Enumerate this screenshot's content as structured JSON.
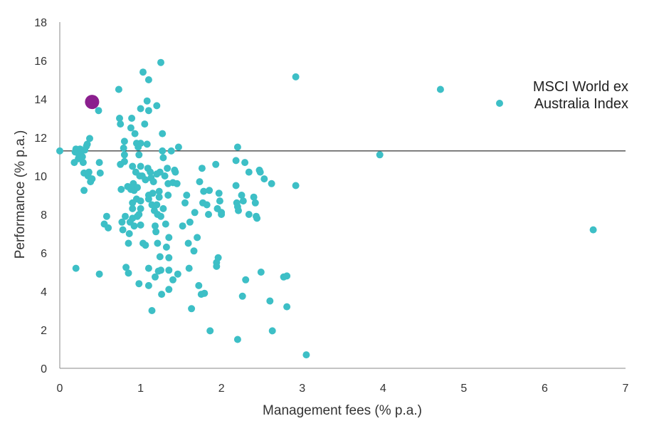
{
  "chart_data": {
    "type": "scatter",
    "title": "",
    "xlabel": "Management fees (% p.a.)",
    "ylabel": "Performance (% p.a.)",
    "xlim": [
      0,
      7
    ],
    "ylim": [
      0,
      18
    ],
    "x_ticks": [
      "0",
      "1",
      "2",
      "3",
      "4",
      "5",
      "6",
      "7"
    ],
    "y_ticks": [
      "0",
      "2",
      "4",
      "6",
      "8",
      "10",
      "12",
      "14",
      "16",
      "18"
    ],
    "grid": false,
    "reference_line": {
      "y": 11.3
    },
    "legend": {
      "position": "right",
      "entries": [
        "MSCI World ex",
        "Australia Index"
      ]
    },
    "colors": {
      "funds": "#3dbfc6",
      "highlight": "#8b1f8e",
      "reference_line": "#000000",
      "axis": "#888888"
    },
    "highlight": {
      "x": 0.4,
      "y": 13.85
    },
    "series": [
      {
        "points": [
          [
            0.0,
            11.3
          ],
          [
            0.18,
            10.7
          ],
          [
            0.19,
            11.25
          ],
          [
            0.2,
            11.4
          ],
          [
            0.22,
            11.2
          ],
          [
            0.23,
            10.9
          ],
          [
            0.25,
            11.4
          ],
          [
            0.26,
            11.1
          ],
          [
            0.28,
            11.0
          ],
          [
            0.29,
            10.7
          ],
          [
            0.3,
            9.25
          ],
          [
            0.3,
            10.15
          ],
          [
            0.31,
            11.35
          ],
          [
            0.33,
            11.55
          ],
          [
            0.34,
            11.65
          ],
          [
            0.35,
            10.0
          ],
          [
            0.36,
            10.2
          ],
          [
            0.37,
            11.95
          ],
          [
            0.38,
            9.7
          ],
          [
            0.4,
            9.85
          ],
          [
            0.48,
            13.4
          ],
          [
            0.49,
            10.7
          ],
          [
            0.5,
            10.15
          ],
          [
            0.2,
            5.2
          ],
          [
            0.49,
            4.9
          ],
          [
            0.55,
            7.5
          ],
          [
            0.58,
            7.9
          ],
          [
            0.6,
            7.3
          ],
          [
            0.73,
            14.5
          ],
          [
            0.74,
            13.0
          ],
          [
            0.75,
            12.7
          ],
          [
            0.75,
            10.6
          ],
          [
            0.76,
            9.3
          ],
          [
            0.77,
            7.6
          ],
          [
            0.78,
            7.2
          ],
          [
            0.79,
            11.45
          ],
          [
            0.8,
            11.8
          ],
          [
            0.8,
            11.1
          ],
          [
            0.8,
            10.75
          ],
          [
            0.81,
            7.9
          ],
          [
            0.82,
            5.25
          ],
          [
            0.84,
            9.45
          ],
          [
            0.85,
            4.95
          ],
          [
            0.85,
            6.5
          ],
          [
            0.86,
            7.0
          ],
          [
            0.87,
            7.6
          ],
          [
            0.88,
            9.3
          ],
          [
            0.88,
            12.5
          ],
          [
            0.89,
            13.0
          ],
          [
            0.9,
            8.6
          ],
          [
            0.9,
            8.3
          ],
          [
            0.9,
            7.8
          ],
          [
            0.9,
            10.5
          ],
          [
            0.91,
            9.6
          ],
          [
            0.92,
            9.25
          ],
          [
            0.92,
            7.4
          ],
          [
            0.93,
            12.2
          ],
          [
            0.94,
            10.2
          ],
          [
            0.95,
            11.7
          ],
          [
            0.95,
            8.8
          ],
          [
            0.96,
            7.9
          ],
          [
            0.96,
            9.4
          ],
          [
            0.97,
            11.5
          ],
          [
            0.98,
            11.1
          ],
          [
            0.98,
            8.0
          ],
          [
            0.99,
            10.0
          ],
          [
            1.0,
            13.5
          ],
          [
            1.0,
            11.7
          ],
          [
            1.0,
            10.5
          ],
          [
            1.0,
            8.7
          ],
          [
            1.0,
            8.3
          ],
          [
            1.0,
            7.45
          ],
          [
            0.98,
            4.4
          ],
          [
            1.02,
            10.0
          ],
          [
            1.03,
            6.5
          ],
          [
            1.03,
            15.4
          ],
          [
            1.05,
            12.7
          ],
          [
            1.06,
            9.8
          ],
          [
            1.06,
            6.4
          ],
          [
            1.08,
            13.9
          ],
          [
            1.08,
            11.65
          ],
          [
            1.09,
            10.4
          ],
          [
            1.1,
            15.0
          ],
          [
            1.1,
            13.4
          ],
          [
            1.1,
            9.0
          ],
          [
            1.1,
            8.8
          ],
          [
            1.1,
            5.2
          ],
          [
            1.1,
            4.3
          ],
          [
            1.12,
            10.2
          ],
          [
            1.13,
            9.9
          ],
          [
            1.14,
            8.5
          ],
          [
            1.15,
            9.1
          ],
          [
            1.14,
            3.0
          ],
          [
            1.16,
            9.7
          ],
          [
            1.17,
            8.2
          ],
          [
            1.18,
            7.4
          ],
          [
            1.18,
            4.75
          ],
          [
            1.19,
            7.1
          ],
          [
            1.2,
            13.65
          ],
          [
            1.2,
            10.1
          ],
          [
            1.2,
            8.5
          ],
          [
            1.21,
            8.0
          ],
          [
            1.21,
            6.5
          ],
          [
            1.22,
            5.05
          ],
          [
            1.23,
            9.2
          ],
          [
            1.23,
            8.9
          ],
          [
            1.24,
            5.8
          ],
          [
            1.24,
            10.2
          ],
          [
            1.25,
            15.9
          ],
          [
            1.25,
            7.9
          ],
          [
            1.25,
            5.1
          ],
          [
            1.26,
            3.85
          ],
          [
            1.27,
            12.2
          ],
          [
            1.27,
            11.3
          ],
          [
            1.28,
            10.95
          ],
          [
            1.28,
            8.3
          ],
          [
            1.3,
            10.0
          ],
          [
            1.31,
            7.5
          ],
          [
            1.32,
            6.3
          ],
          [
            1.33,
            10.4
          ],
          [
            1.34,
            9.6
          ],
          [
            1.34,
            9.0
          ],
          [
            1.35,
            6.8
          ],
          [
            1.35,
            5.75
          ],
          [
            1.35,
            5.1
          ],
          [
            1.35,
            4.1
          ],
          [
            1.38,
            11.3
          ],
          [
            1.4,
            9.65
          ],
          [
            1.4,
            4.6
          ],
          [
            1.42,
            10.3
          ],
          [
            1.43,
            10.2
          ],
          [
            1.45,
            9.6
          ],
          [
            1.46,
            4.9
          ],
          [
            1.47,
            11.5
          ],
          [
            1.52,
            7.4
          ],
          [
            1.55,
            8.6
          ],
          [
            1.57,
            9.0
          ],
          [
            1.59,
            6.5
          ],
          [
            1.6,
            5.2
          ],
          [
            1.61,
            7.6
          ],
          [
            1.63,
            3.1
          ],
          [
            1.66,
            6.1
          ],
          [
            1.67,
            8.1
          ],
          [
            1.7,
            6.8
          ],
          [
            1.72,
            4.3
          ],
          [
            1.73,
            9.7
          ],
          [
            1.75,
            3.85
          ],
          [
            1.76,
            10.4
          ],
          [
            1.77,
            8.6
          ],
          [
            1.78,
            9.2
          ],
          [
            1.79,
            3.9
          ],
          [
            1.82,
            8.5
          ],
          [
            1.84,
            8.0
          ],
          [
            1.85,
            9.25
          ],
          [
            1.86,
            1.95
          ],
          [
            1.93,
            10.6
          ],
          [
            1.94,
            5.3
          ],
          [
            1.94,
            5.5
          ],
          [
            1.95,
            8.3
          ],
          [
            1.96,
            5.75
          ],
          [
            1.97,
            9.1
          ],
          [
            1.98,
            8.7
          ],
          [
            2.0,
            8.0
          ],
          [
            2.0,
            8.1
          ],
          [
            2.18,
            10.8
          ],
          [
            2.18,
            9.5
          ],
          [
            2.19,
            8.6
          ],
          [
            2.2,
            8.4
          ],
          [
            2.21,
            8.2
          ],
          [
            2.2,
            11.5
          ],
          [
            2.2,
            1.5
          ],
          [
            2.25,
            9.0
          ],
          [
            2.26,
            3.75
          ],
          [
            2.27,
            8.7
          ],
          [
            2.29,
            10.7
          ],
          [
            2.3,
            4.6
          ],
          [
            2.34,
            10.2
          ],
          [
            2.34,
            8.0
          ],
          [
            2.4,
            8.9
          ],
          [
            2.42,
            8.6
          ],
          [
            2.43,
            7.9
          ],
          [
            2.44,
            7.8
          ],
          [
            2.47,
            10.3
          ],
          [
            2.48,
            10.2
          ],
          [
            2.49,
            5.0
          ],
          [
            2.53,
            9.85
          ],
          [
            2.6,
            3.5
          ],
          [
            2.62,
            9.6
          ],
          [
            2.63,
            1.95
          ],
          [
            2.77,
            4.75
          ],
          [
            2.81,
            4.8
          ],
          [
            2.81,
            3.2
          ],
          [
            2.92,
            15.15
          ],
          [
            2.92,
            9.5
          ],
          [
            3.05,
            0.7
          ],
          [
            3.96,
            11.1
          ],
          [
            4.71,
            14.5
          ],
          [
            6.6,
            7.2
          ]
        ]
      }
    ]
  }
}
